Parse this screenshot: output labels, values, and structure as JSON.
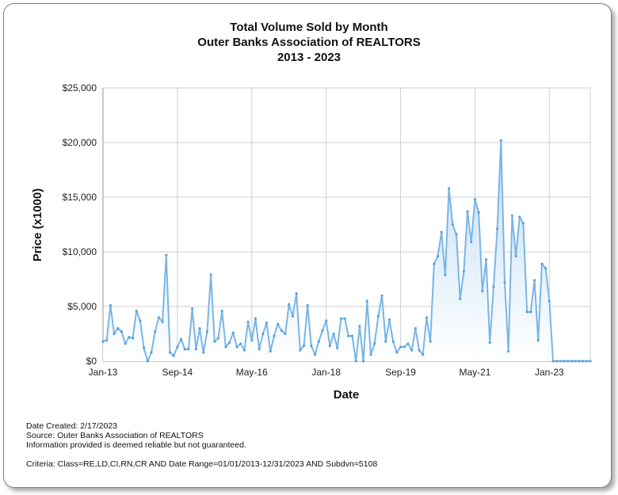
{
  "chart_data": {
    "type": "area",
    "title_lines": [
      "Total Volume Sold by Month",
      "Outer Banks Association of REALTORS",
      "2013 - 2023"
    ],
    "xlabel": "Date",
    "ylabel": "Price (x1000)",
    "ylim": [
      0,
      25000
    ],
    "yticks": [
      0,
      5000,
      10000,
      15000,
      20000,
      25000
    ],
    "ytick_labels": [
      "$0",
      "$5,000",
      "$10,000",
      "$15,000",
      "$20,000",
      "$25,000"
    ],
    "xlim_months": [
      "2013-01",
      "2023-12"
    ],
    "xticks": [
      "2013-01",
      "2014-09",
      "2016-05",
      "2018-01",
      "2019-09",
      "2021-05",
      "2023-01"
    ],
    "xtick_labels": [
      "Jan-13",
      "Sep-14",
      "May-16",
      "Jan-18",
      "Sep-19",
      "May-21",
      "Jan-23"
    ],
    "grid": true,
    "series_color": "#79b6e6",
    "months": [
      "2013-01",
      "2013-02",
      "2013-03",
      "2013-04",
      "2013-05",
      "2013-06",
      "2013-07",
      "2013-08",
      "2013-09",
      "2013-10",
      "2013-11",
      "2013-12",
      "2014-01",
      "2014-02",
      "2014-03",
      "2014-04",
      "2014-05",
      "2014-06",
      "2014-07",
      "2014-08",
      "2014-09",
      "2014-10",
      "2014-11",
      "2014-12",
      "2015-01",
      "2015-02",
      "2015-03",
      "2015-04",
      "2015-05",
      "2015-06",
      "2015-07",
      "2015-08",
      "2015-09",
      "2015-10",
      "2015-11",
      "2015-12",
      "2016-01",
      "2016-02",
      "2016-03",
      "2016-04",
      "2016-05",
      "2016-06",
      "2016-07",
      "2016-08",
      "2016-09",
      "2016-10",
      "2016-11",
      "2016-12",
      "2017-01",
      "2017-02",
      "2017-03",
      "2017-04",
      "2017-05",
      "2017-06",
      "2017-07",
      "2017-08",
      "2017-09",
      "2017-10",
      "2017-11",
      "2017-12",
      "2018-01",
      "2018-02",
      "2018-03",
      "2018-04",
      "2018-05",
      "2018-06",
      "2018-07",
      "2018-08",
      "2018-09",
      "2018-10",
      "2018-11",
      "2018-12",
      "2019-01",
      "2019-02",
      "2019-03",
      "2019-04",
      "2019-05",
      "2019-06",
      "2019-07",
      "2019-08",
      "2019-09",
      "2019-10",
      "2019-11",
      "2019-12",
      "2020-01",
      "2020-02",
      "2020-03",
      "2020-04",
      "2020-05",
      "2020-06",
      "2020-07",
      "2020-08",
      "2020-09",
      "2020-10",
      "2020-11",
      "2020-12",
      "2021-01",
      "2021-02",
      "2021-03",
      "2021-04",
      "2021-05",
      "2021-06",
      "2021-07",
      "2021-08",
      "2021-09",
      "2021-10",
      "2021-11",
      "2021-12",
      "2022-01",
      "2022-02",
      "2022-03",
      "2022-04",
      "2022-05",
      "2022-06",
      "2022-07",
      "2022-08",
      "2022-09",
      "2022-10",
      "2022-11",
      "2022-12",
      "2023-01",
      "2023-02",
      "2023-03",
      "2023-04",
      "2023-05",
      "2023-06",
      "2023-07",
      "2023-08",
      "2023-09",
      "2023-10",
      "2023-11",
      "2023-12"
    ],
    "values": [
      1800,
      1900,
      5100,
      2500,
      3000,
      2700,
      1600,
      2200,
      2100,
      4600,
      3700,
      1200,
      0,
      800,
      2700,
      4000,
      3600,
      9700,
      800,
      500,
      1300,
      2000,
      1100,
      1100,
      4800,
      1100,
      3000,
      800,
      2700,
      7900,
      1800,
      2100,
      4600,
      1300,
      1700,
      2600,
      1300,
      1600,
      1000,
      3600,
      1900,
      3900,
      1100,
      2500,
      3500,
      900,
      2300,
      3400,
      2800,
      2500,
      5200,
      4100,
      6200,
      1000,
      1400,
      5100,
      1400,
      600,
      1800,
      2800,
      3700,
      1400,
      2500,
      1200,
      3900,
      3900,
      2300,
      2300,
      0,
      3200,
      0,
      5500,
      600,
      1600,
      4100,
      6000,
      1800,
      3800,
      1800,
      800,
      1300,
      1300,
      1600,
      1000,
      3000,
      1000,
      600,
      4000,
      1800,
      8900,
      9600,
      11800,
      7900,
      15800,
      12500,
      11600,
      5700,
      8200,
      13700,
      10900,
      14800,
      13600,
      6400,
      9300,
      1700,
      6800,
      12100,
      20200,
      7200,
      900,
      13300,
      9600,
      13200,
      12600,
      4500,
      4500,
      7400,
      1900,
      8900,
      8500,
      5500,
      0,
      0,
      0,
      0,
      0,
      0,
      0,
      0,
      0,
      0,
      0
    ]
  },
  "footer": {
    "date_created": "Date Created: 2/17/2023",
    "source": "Source: Outer Banks Association of REALTORS",
    "disclaimer": "Information provided is deemed reliable but not guaranteed.",
    "criteria": "Criteria: Class=RE,LD,CI,RN,CR AND Date Range=01/01/2013-12/31/2023 AND Subdvn=5108"
  }
}
